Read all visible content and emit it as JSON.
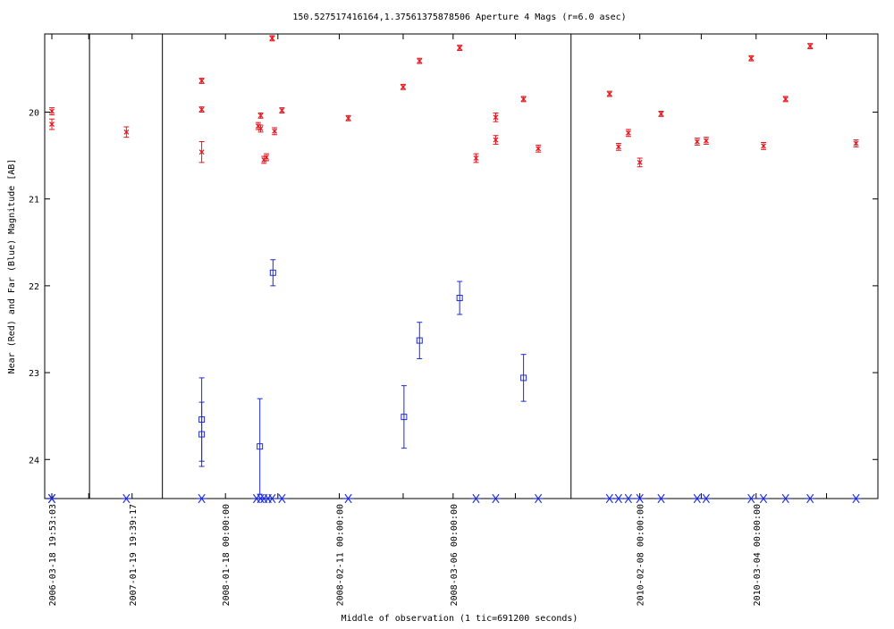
{
  "chart_data": {
    "type": "scatter",
    "title": "150.527517416164,1.37561375878506   Aperture 4 Mags (r=6.0 asec)",
    "xlabel": "Middle of observation (1 tic=691200 seconds)",
    "ylabel": "Near (Red) and Far (Blue) Magnitude [AB]",
    "ylim": [
      24.45,
      19.1
    ],
    "y_inverted": true,
    "yticks": [
      20,
      21,
      22,
      23,
      24
    ],
    "xrange_units": "observation index position",
    "xlim": [
      0,
      100
    ],
    "x_ticks": [
      {
        "x": 0.0,
        "label": "2006-03-18 19:53:03"
      },
      {
        "x": 9.8,
        "label": "2007-01-19 19:39:17"
      },
      {
        "x": 21.2,
        "label": "2008-01-18 00:00:00"
      },
      {
        "x": 35.1,
        "label": "2008-02-11 00:00:00"
      },
      {
        "x": 49.0,
        "label": "2008-03-06 00:00:00"
      },
      {
        "x": 71.8,
        "label": "2010-02-08 00:00:00"
      },
      {
        "x": 86.0,
        "label": "2010-03-04 00:00:00"
      }
    ],
    "x_ticks_top_only": [
      4.5,
      27.6,
      42.9,
      56.6,
      79.3,
      94.6
    ],
    "segment_dividers": [
      4.6,
      13.5,
      63.4
    ],
    "series": [
      {
        "name": "Near (Red)",
        "color": "#e8141c",
        "marker": "x",
        "points": [
          {
            "x": 0.0,
            "y": 19.99,
            "err": 0.04
          },
          {
            "x": 0.0,
            "y": 20.14,
            "err": 0.06
          },
          {
            "x": 9.1,
            "y": 20.23,
            "err": 0.06
          },
          {
            "x": 18.3,
            "y": 19.64,
            "err": 0.03
          },
          {
            "x": 18.3,
            "y": 19.97,
            "err": 0.03
          },
          {
            "x": 18.3,
            "y": 20.46,
            "err": 0.12
          },
          {
            "x": 25.5,
            "y": 20.04,
            "err": 0.03
          },
          {
            "x": 25.2,
            "y": 20.16,
            "err": 0.04
          },
          {
            "x": 25.5,
            "y": 20.19,
            "err": 0.04
          },
          {
            "x": 25.9,
            "y": 20.55,
            "err": 0.04
          },
          {
            "x": 26.2,
            "y": 20.52,
            "err": 0.04
          },
          {
            "x": 26.9,
            "y": 19.15,
            "err": 0.03
          },
          {
            "x": 27.2,
            "y": 20.22,
            "err": 0.04
          },
          {
            "x": 28.1,
            "y": 19.98,
            "err": 0.03
          },
          {
            "x": 36.2,
            "y": 20.07,
            "err": 0.03
          },
          {
            "x": 42.9,
            "y": 19.71,
            "err": 0.03
          },
          {
            "x": 44.9,
            "y": 19.41,
            "err": 0.03
          },
          {
            "x": 49.8,
            "y": 19.26,
            "err": 0.03
          },
          {
            "x": 51.8,
            "y": 20.53,
            "err": 0.05
          },
          {
            "x": 54.2,
            "y": 20.06,
            "err": 0.05
          },
          {
            "x": 54.2,
            "y": 20.32,
            "err": 0.05
          },
          {
            "x": 57.6,
            "y": 19.85,
            "err": 0.03
          },
          {
            "x": 59.4,
            "y": 20.42,
            "err": 0.04
          },
          {
            "x": 68.1,
            "y": 19.79,
            "err": 0.03
          },
          {
            "x": 69.2,
            "y": 20.4,
            "err": 0.04
          },
          {
            "x": 70.4,
            "y": 20.24,
            "err": 0.04
          },
          {
            "x": 71.8,
            "y": 20.58,
            "err": 0.05
          },
          {
            "x": 74.4,
            "y": 20.02,
            "err": 0.03
          },
          {
            "x": 78.8,
            "y": 20.34,
            "err": 0.04
          },
          {
            "x": 79.9,
            "y": 20.33,
            "err": 0.04
          },
          {
            "x": 85.4,
            "y": 19.38,
            "err": 0.03
          },
          {
            "x": 86.9,
            "y": 20.39,
            "err": 0.04
          },
          {
            "x": 89.6,
            "y": 19.85,
            "err": 0.03
          },
          {
            "x": 92.6,
            "y": 19.24,
            "err": 0.03
          },
          {
            "x": 98.2,
            "y": 20.36,
            "err": 0.04
          }
        ]
      },
      {
        "name": "Far (Blue)",
        "color": "#1f2bd0",
        "marker": "square",
        "points": [
          {
            "x": 18.3,
            "y": 23.54,
            "err": 0.48
          },
          {
            "x": 18.3,
            "y": 23.71,
            "err": 0.37
          },
          {
            "x": 25.4,
            "y": 23.85,
            "err": 0.55
          },
          {
            "x": 27.0,
            "y": 21.85,
            "err": 0.15
          },
          {
            "x": 43.0,
            "y": 23.51,
            "err": 0.36
          },
          {
            "x": 44.9,
            "y": 22.63,
            "err": 0.21
          },
          {
            "x": 49.8,
            "y": 22.14,
            "err": 0.19
          },
          {
            "x": 57.6,
            "y": 23.06,
            "err": 0.27
          }
        ]
      }
    ],
    "limit_markers": {
      "color": "#1f2bd0",
      "marker": "asterisk",
      "y": 24.45,
      "x": [
        0.0,
        0.0,
        9.1,
        18.3,
        25.0,
        25.5,
        25.9,
        26.4,
        26.9,
        28.1,
        36.2,
        51.8,
        54.2,
        59.4,
        68.1,
        69.2,
        70.4,
        71.8,
        74.4,
        78.8,
        79.9,
        85.4,
        86.9,
        89.6,
        92.6,
        98.2
      ]
    }
  }
}
